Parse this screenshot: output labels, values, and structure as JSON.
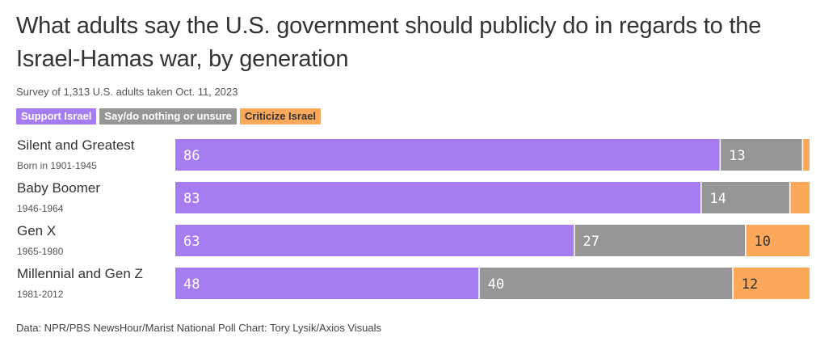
{
  "title": "What adults say the U.S. government should publicly do in regards to the Israel-Hamas war, by generation",
  "subtitle": "Survey of 1,313 U.S. adults taken Oct. 11, 2023",
  "source": "Data: NPR/PBS NewsHour/Marist National Poll Chart: Tory Lysik/Axios Visuals",
  "legend": [
    {
      "label": "Support Israel",
      "color": "#a57df0",
      "text_color": "#ffffff"
    },
    {
      "label": "Say/do nothing or unsure",
      "color": "#969696",
      "text_color": "#ffffff"
    },
    {
      "label": "Criticize Israel",
      "color": "#fba85a",
      "text_color": "#333333"
    }
  ],
  "chart_data": {
    "type": "bar",
    "orientation": "horizontal",
    "stacked": true,
    "title": "What adults say the U.S. government should publicly do in regards to the Israel-Hamas war, by generation",
    "xlim": [
      0,
      100
    ],
    "categories": [
      "Silent and Greatest",
      "Baby Boomer",
      "Gen X",
      "Millennial and Gen Z"
    ],
    "category_sublabels": [
      "Born in 1901-1945",
      "1946-1964",
      "1965-1980",
      "1981-2012"
    ],
    "series": [
      {
        "name": "Support Israel",
        "color": "#a57df0",
        "values": [
          86,
          83,
          63,
          48
        ],
        "labels": [
          "86",
          "83",
          "63",
          "48"
        ]
      },
      {
        "name": "Say/do nothing or unsure",
        "color": "#969696",
        "values": [
          13,
          14,
          27,
          40
        ],
        "labels": [
          "13",
          "14",
          "27",
          "40"
        ]
      },
      {
        "name": "Criticize Israel",
        "color": "#fba85a",
        "values": [
          1,
          3,
          10,
          12
        ],
        "labels": [
          "",
          "",
          "10",
          "12"
        ]
      }
    ]
  }
}
